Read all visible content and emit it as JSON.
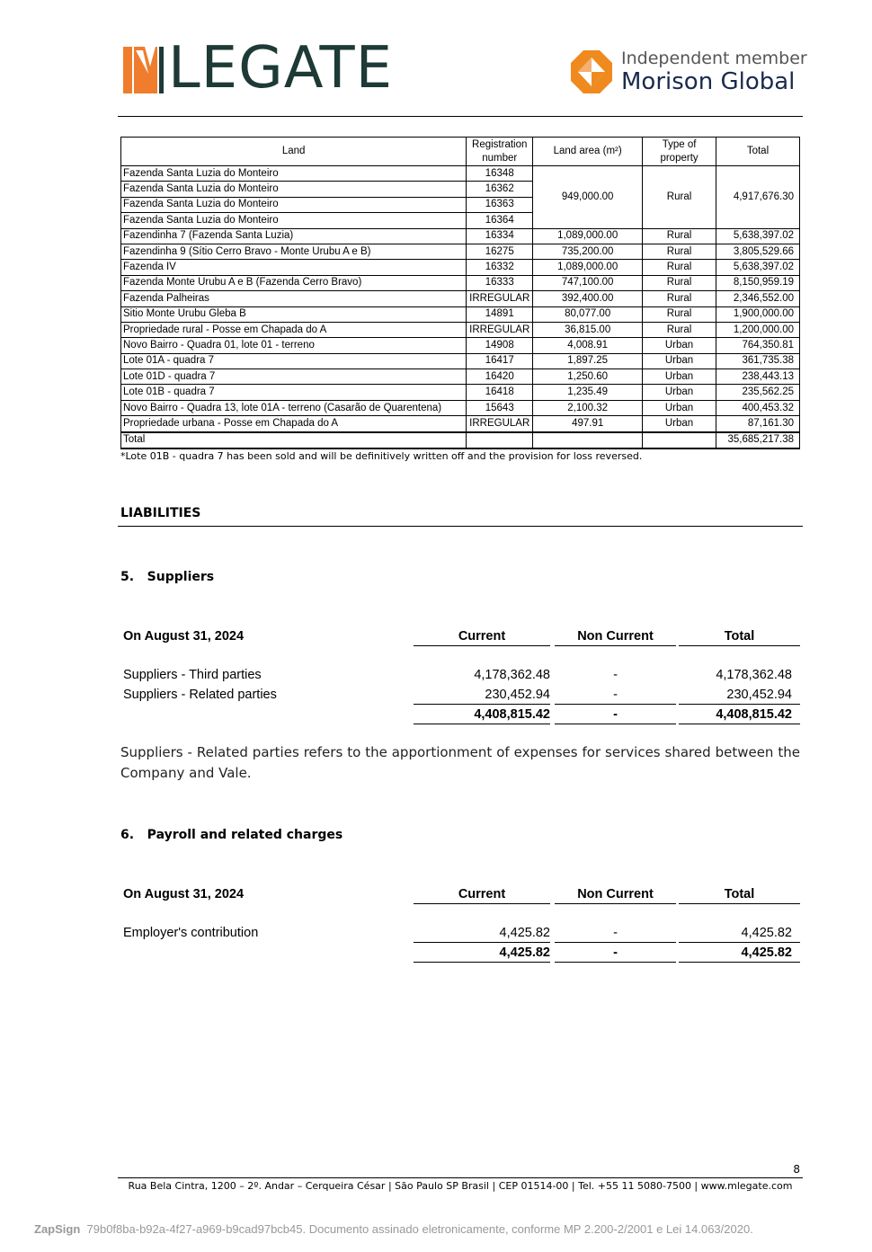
{
  "header": {
    "logo_text": "LEGATE",
    "logo_full": "MLEGATE",
    "member_line1": "Independent member",
    "member_line2": "Morison Global",
    "colors": {
      "orange": "#ef7d2d",
      "dark_green": "#1d3a36",
      "navy": "#1a2a4e"
    }
  },
  "land_table": {
    "headers": [
      "Land",
      "Registration number",
      "Land area (m²)",
      "Type of property",
      "Total"
    ],
    "group": {
      "rows": [
        {
          "land": "Fazenda Santa Luzia do Monteiro",
          "reg": "16348"
        },
        {
          "land": "Fazenda Santa Luzia do Monteiro",
          "reg": "16362"
        },
        {
          "land": "Fazenda Santa Luzia do Monteiro",
          "reg": "16363"
        },
        {
          "land": "Fazenda Santa Luzia do Monteiro",
          "reg": "16364"
        }
      ],
      "area": "949,000.00",
      "type": "Rural",
      "total": "4,917,676.30"
    },
    "rows": [
      {
        "land": "Fazendinha 7 (Fazenda Santa Luzia)",
        "reg": "16334",
        "area": "1,089,000.00",
        "type": "Rural",
        "total": "5,638,397.02"
      },
      {
        "land": "Fazendinha 9 (Sítio Cerro Bravo - Monte Urubu A e B)",
        "reg": "16275",
        "area": "735,200.00",
        "type": "Rural",
        "total": "3,805,529.66"
      },
      {
        "land": "Fazenda IV",
        "reg": "16332",
        "area": "1,089,000.00",
        "type": "Rural",
        "total": "5,638,397.02"
      },
      {
        "land": "Fazenda Monte Urubu A e B (Fazenda Cerro Bravo)",
        "reg": "16333",
        "area": "747,100.00",
        "type": "Rural",
        "total": "8,150,959.19"
      },
      {
        "land": "Fazenda Palheiras",
        "reg": "IRREGULAR",
        "area": "392,400.00",
        "type": "Rural",
        "total": "2,346,552.00"
      },
      {
        "land": "Sitio Monte Urubu Gleba B",
        "reg": "14891",
        "area": "80,077.00",
        "type": "Rural",
        "total": "1,900,000.00"
      },
      {
        "land": "Propriedade rural - Posse em Chapada do A",
        "reg": "IRREGULAR",
        "area": "36,815.00",
        "type": "Rural",
        "total": "1,200,000.00"
      },
      {
        "land": "Novo Bairro - Quadra 01, lote 01 - terreno",
        "reg": "14908",
        "area": "4,008.91",
        "type": "Urban",
        "total": "764,350.81"
      },
      {
        "land": "Lote 01A - quadra 7",
        "reg": "16417",
        "area": "1,897.25",
        "type": "Urban",
        "total": "361,735.38"
      },
      {
        "land": "Lote 01D - quadra 7",
        "reg": "16420",
        "area": "1,250.60",
        "type": "Urban",
        "total": "238,443.13"
      },
      {
        "land": "Lote 01B - quadra 7",
        "reg": "16418",
        "area": "1,235.49",
        "type": "Urban",
        "total": "235,562.25"
      },
      {
        "land": "Novo Bairro - Quadra 13, lote 01A - terreno (Casarão de Quarentena)",
        "reg": "15643",
        "area": "2,100.32",
        "type": "Urban",
        "total": "400,453.32"
      },
      {
        "land": "Propriedade urbana - Posse em Chapada do A",
        "reg": "IRREGULAR",
        "area": "497.91",
        "type": "Urban",
        "total": "87,161.30"
      }
    ],
    "total_label": "Total",
    "total_value": "35,685,217.38",
    "note": "*Lote 01B - quadra 7 has been sold and will be definitively written off and the provision for loss reversed."
  },
  "liabilities_title": "LIABILITIES",
  "suppliers": {
    "title": "5.   Suppliers",
    "header": {
      "date": "On August 31, 2024",
      "current": "Current",
      "non_current": "Non Current",
      "total": "Total"
    },
    "rows": [
      {
        "label": "Suppliers - Third parties",
        "current": "4,178,362.48",
        "non_current": "-",
        "total": "4,178,362.48"
      },
      {
        "label": "Suppliers - Related parties",
        "current": "230,452.94",
        "non_current": "-",
        "total": "230,452.94"
      }
    ],
    "sum": {
      "current": "4,408,815.42",
      "non_current": "-",
      "total": "4,408,815.42"
    },
    "paragraph": "Suppliers - Related parties refers to the apportionment of expenses for services shared between the Company and Vale."
  },
  "payroll": {
    "title": "6.   Payroll and related charges",
    "header": {
      "date": "On August 31, 2024",
      "current": "Current",
      "non_current": "Non Current",
      "total": "Total"
    },
    "rows": [
      {
        "label": "Employer's contribution",
        "current": "4,425.82",
        "non_current": "-",
        "total": "4,425.82"
      }
    ],
    "sum": {
      "current": "4,425.82",
      "non_current": "-",
      "total": "4,425.82"
    }
  },
  "footer": {
    "page_number": "8",
    "address": "Rua Bela Cintra, 1200 – 2º. Andar – Cerqueira César | São Paulo SP Brasil | CEP 01514-00 | Tel. +55 11 5080-7500 | www.mlegate.com"
  },
  "zapsign": {
    "brand": "ZapSign",
    "text": "79b0f8ba-b92a-4f27-a969-b9cad97bcb45.  Documento assinado eletronicamente, conforme MP 2.200-2/2001 e Lei 14.063/2020."
  }
}
